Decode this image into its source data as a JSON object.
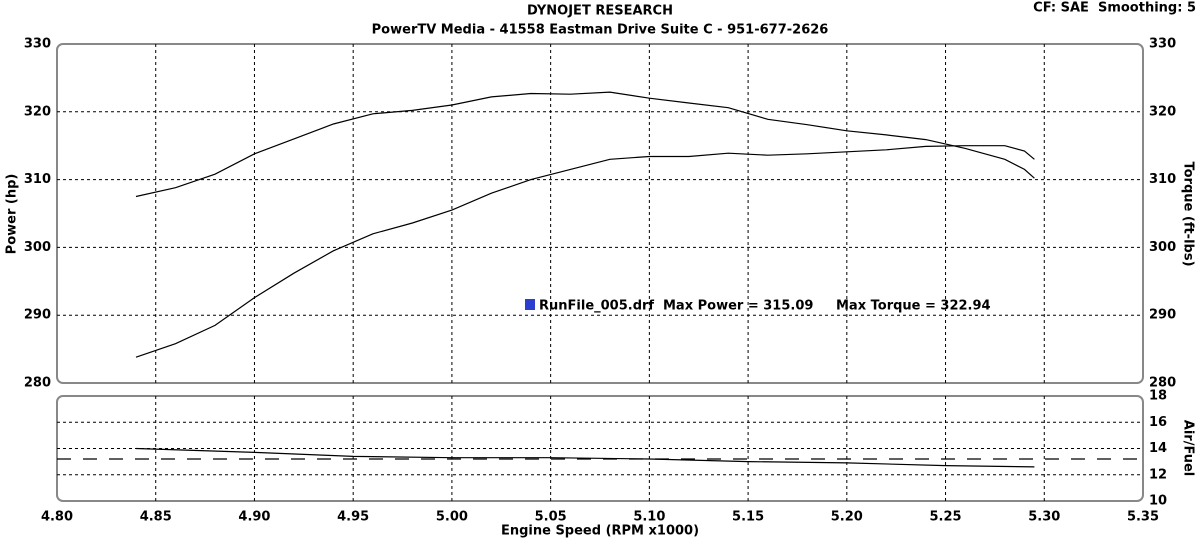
{
  "chart_data": [
    {
      "type": "line",
      "title": "DYNOJET RESEARCH",
      "subtitle": "PowerTV Media - 41558 Eastman Drive Suite C - 951-677-2626",
      "corner_note": "CF: SAE  Smoothing: 5",
      "y_label": "Power (hp)",
      "y2_label": "Torque (ft-lbs)",
      "legend": {
        "run": "RunFile_005.drf",
        "max_power": "Max Power = 315.09",
        "max_torque": "Max Torque = 322.94",
        "color": "#2a3fd0"
      },
      "xlim": [
        4.8,
        5.35
      ],
      "ylim": [
        280,
        330
      ],
      "y2lim": [
        280,
        330
      ],
      "yticks": [
        280,
        290,
        300,
        310,
        320,
        330
      ],
      "y2ticks": [
        280,
        290,
        300,
        310,
        320,
        330
      ],
      "grid": true,
      "x": [
        4.84,
        4.86,
        4.88,
        4.9,
        4.92,
        4.94,
        4.96,
        4.98,
        5.0,
        5.02,
        5.04,
        5.06,
        5.08,
        5.1,
        5.12,
        5.14,
        5.16,
        5.18,
        5.2,
        5.22,
        5.24,
        5.26,
        5.28,
        5.29,
        5.295
      ],
      "series": [
        {
          "name": "Power",
          "color": "#000000",
          "values": [
            283.8,
            285.8,
            288.5,
            292.6,
            296.2,
            299.5,
            302.0,
            303.6,
            305.5,
            308.0,
            310.0,
            311.5,
            313.0,
            313.4,
            313.4,
            313.9,
            313.6,
            313.8,
            314.1,
            314.4,
            314.9,
            315.0,
            315.0,
            314.2,
            313.0
          ]
        },
        {
          "name": "Torque",
          "color": "#000000",
          "axis": "y2",
          "values": [
            307.5,
            308.8,
            310.8,
            313.8,
            316.0,
            318.2,
            319.7,
            320.2,
            321.0,
            322.2,
            322.7,
            322.6,
            322.9,
            322.0,
            321.3,
            320.6,
            318.9,
            318.1,
            317.2,
            316.6,
            315.9,
            314.6,
            313.0,
            311.5,
            310.2
          ]
        }
      ]
    },
    {
      "type": "line",
      "x_label": "Engine Speed (RPM x1000)",
      "y2_label": "Air/Fuel",
      "xlim": [
        4.8,
        5.35
      ],
      "y2lim": [
        10,
        18
      ],
      "y2ticks": [
        10,
        12,
        14,
        16,
        18
      ],
      "grid": true,
      "reference": 13.2,
      "xticks": [
        {
          "value": 4.8,
          "label": "4.80"
        },
        {
          "value": 4.85,
          "label": "4.85"
        },
        {
          "value": 4.9,
          "label": "4.90"
        },
        {
          "value": 4.95,
          "label": "4.95"
        },
        {
          "value": 5.0,
          "label": "5.00"
        },
        {
          "value": 5.05,
          "label": "5.05"
        },
        {
          "value": 5.1,
          "label": "5.10"
        },
        {
          "value": 5.15,
          "label": "5.15"
        },
        {
          "value": 5.2,
          "label": "5.20"
        },
        {
          "value": 5.25,
          "label": "5.25"
        },
        {
          "value": 5.3,
          "label": "5.30"
        },
        {
          "value": 5.35,
          "label": "5.35"
        }
      ],
      "x": [
        4.84,
        4.9,
        4.95,
        5.0,
        5.05,
        5.1,
        5.15,
        5.2,
        5.25,
        5.295
      ],
      "series": [
        {
          "name": "Air/Fuel",
          "color": "#000000",
          "axis": "y2",
          "values": [
            14.0,
            13.7,
            13.4,
            13.3,
            13.3,
            13.2,
            13.0,
            12.9,
            12.7,
            12.6
          ]
        }
      ]
    }
  ]
}
